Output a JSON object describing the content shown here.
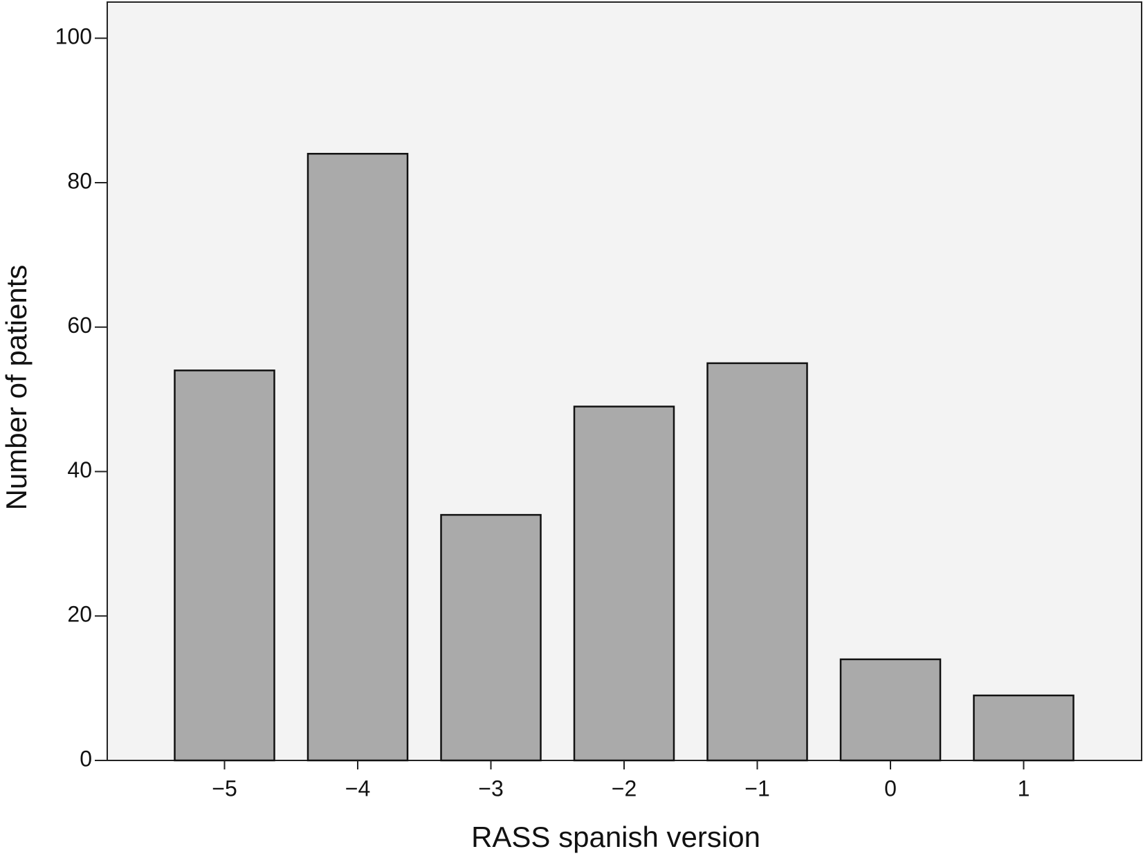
{
  "chart_data": {
    "type": "bar",
    "x_label": "RASS spanish version",
    "y_label": "Number of patients",
    "categories": [
      "−5",
      "−4",
      "−3",
      "−2",
      "−1",
      "0",
      "1"
    ],
    "values": [
      54,
      84,
      34,
      49,
      55,
      14,
      9
    ],
    "color": "#aaaaaa",
    "ylim": [
      0,
      105
    ],
    "yticks": [
      0,
      20,
      40,
      60,
      80,
      100
    ],
    "grid": false
  }
}
